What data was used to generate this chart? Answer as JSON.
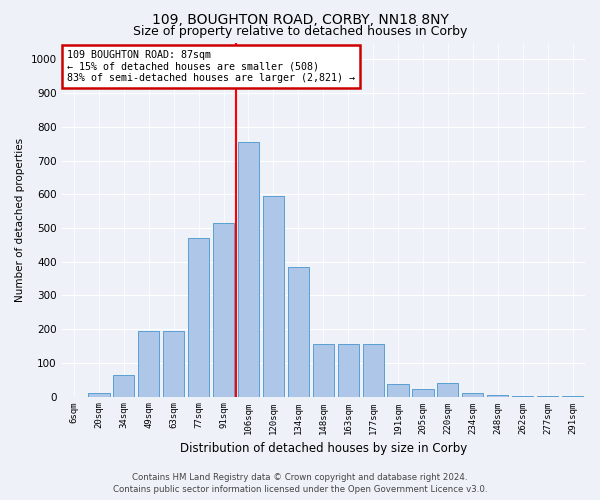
{
  "title1": "109, BOUGHTON ROAD, CORBY, NN18 8NY",
  "title2": "Size of property relative to detached houses in Corby",
  "xlabel": "Distribution of detached houses by size in Corby",
  "ylabel": "Number of detached properties",
  "categories": [
    "6sqm",
    "20sqm",
    "34sqm",
    "49sqm",
    "63sqm",
    "77sqm",
    "91sqm",
    "106sqm",
    "120sqm",
    "134sqm",
    "148sqm",
    "163sqm",
    "177sqm",
    "191sqm",
    "205sqm",
    "220sqm",
    "234sqm",
    "248sqm",
    "262sqm",
    "277sqm",
    "291sqm"
  ],
  "values": [
    0,
    10,
    65,
    195,
    195,
    470,
    515,
    755,
    595,
    385,
    155,
    155,
    155,
    38,
    22,
    40,
    10,
    5,
    3,
    3,
    3
  ],
  "bar_color": "#aec6e8",
  "bar_edge_color": "#5a9fd4",
  "red_line_index": 6,
  "annotation_line1": "109 BOUGHTON ROAD: 87sqm",
  "annotation_line2": "← 15% of detached houses are smaller (508)",
  "annotation_line3": "83% of semi-detached houses are larger (2,821) →",
  "annotation_box_color": "#ffffff",
  "annotation_box_edge": "#cc0000",
  "ylim": [
    0,
    1050
  ],
  "yticks": [
    0,
    100,
    200,
    300,
    400,
    500,
    600,
    700,
    800,
    900,
    1000
  ],
  "footer1": "Contains HM Land Registry data © Crown copyright and database right 2024.",
  "footer2": "Contains public sector information licensed under the Open Government Licence v3.0.",
  "bg_color": "#eef2f8",
  "plot_bg_color": "#eef2f8",
  "grid_color": "#ffffff",
  "title1_fontsize": 10,
  "title2_fontsize": 9
}
